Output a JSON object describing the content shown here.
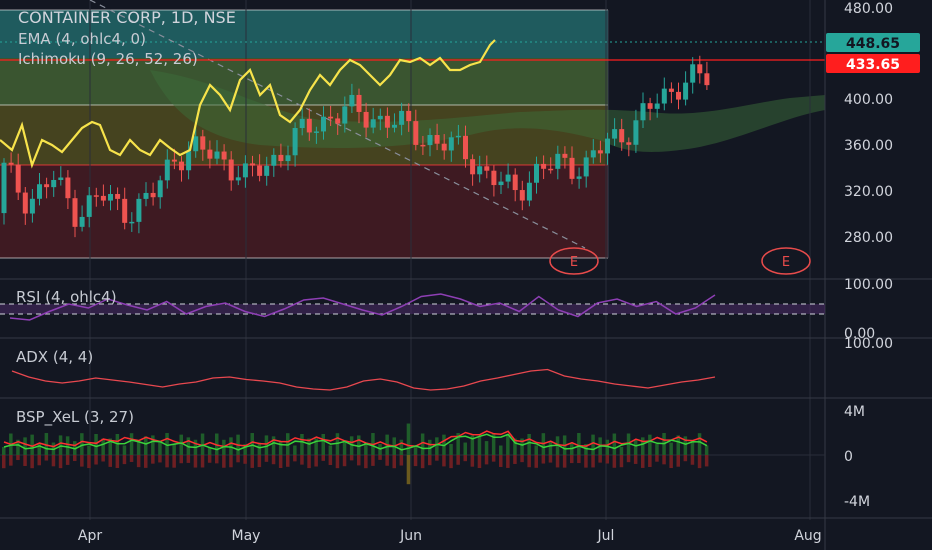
{
  "header": {
    "title": "CONTAINER CORP, 1D, NSE",
    "ema_label": "EMA (4, ohlc4, 0)",
    "ichimoku_label": "Ichimoku (9, 26, 52, 26)"
  },
  "panes": {
    "rsi_label": "RSI (4, ohlc4)",
    "adx_label": "ADX (4, 4)",
    "bsp_label": "BSP_XeL (3, 27)"
  },
  "price_axis": [
    "480.00",
    "400.00",
    "360.00",
    "320.00",
    "280.00"
  ],
  "rsi_axis": [
    "100.00",
    "0.00"
  ],
  "adx_axis": [
    "100.00"
  ],
  "bsp_axis": [
    "4M",
    "0",
    "-4M"
  ],
  "badges": {
    "last_price": "448.65",
    "level_price": "433.65",
    "last_color": "#26a69a",
    "level_color": "#ff1e1e"
  },
  "earnings_marker": "E",
  "time_axis": [
    "Apr",
    "May",
    "Jun",
    "Jul",
    "Aug"
  ],
  "colors": {
    "up": "#26a69a",
    "down": "#ef5350",
    "ema": "#f7e34b",
    "rsi": "#8e3fb5",
    "adx": "#e8484f",
    "background": "#131722"
  },
  "chart_data": [
    {
      "type": "candlestick",
      "title": "CONTAINER CORP, 1D, NSE",
      "x_range": [
        "Mar",
        "Aug"
      ],
      "ylim": [
        250,
        485
      ],
      "last_price": 448.65,
      "horizontal_levels": [
        433.65,
        448.65
      ],
      "zones": [
        {
          "from": 433.65,
          "to": 480,
          "color": "teal"
        },
        {
          "from": 395,
          "to": 433.65,
          "color": "green"
        },
        {
          "from": 343,
          "to": 395,
          "color": "olive"
        },
        {
          "from": 258,
          "to": 343,
          "color": "maroon"
        }
      ],
      "series": [
        {
          "name": "EMA (4, ohlc4, 0)",
          "approx_close_path": [
            368,
            340,
            360,
            330,
            345,
            332,
            340,
            380,
            385,
            378,
            360,
            375,
            395,
            410,
            420,
            415,
            410,
            400,
            390,
            385,
            360,
            350,
            365,
            375,
            370,
            395,
            405,
            430,
            445,
            448
          ]
        },
        {
          "name": "Ichimoku (9, 26, 52, 26)"
        }
      ]
    },
    {
      "type": "line",
      "name": "RSI (4, ohlc4)",
      "ylim": [
        0,
        100
      ],
      "guides": [
        60,
        40
      ],
      "values": [
        32,
        28,
        45,
        60,
        52,
        70,
        58,
        48,
        65,
        40,
        55,
        62,
        45,
        35,
        50,
        68,
        72,
        60,
        48,
        38,
        55,
        75,
        80,
        70,
        55,
        62,
        45,
        75,
        48,
        35,
        62,
        70,
        55,
        65,
        40,
        52,
        78
      ]
    },
    {
      "type": "line",
      "name": "ADX (4, 4)",
      "ylim": [
        0,
        100
      ],
      "values": [
        62,
        50,
        42,
        38,
        42,
        48,
        44,
        40,
        35,
        30,
        36,
        40,
        48,
        50,
        45,
        42,
        38,
        30,
        26,
        24,
        30,
        42,
        46,
        40,
        28,
        24,
        26,
        32,
        42,
        48,
        55,
        62,
        65,
        52,
        46,
        42,
        36,
        32,
        28,
        34,
        40,
        44,
        50
      ]
    },
    {
      "type": "bar",
      "name": "BSP_XeL (3, 27)",
      "ylim": [
        -4,
        4
      ],
      "units": "M"
    }
  ]
}
